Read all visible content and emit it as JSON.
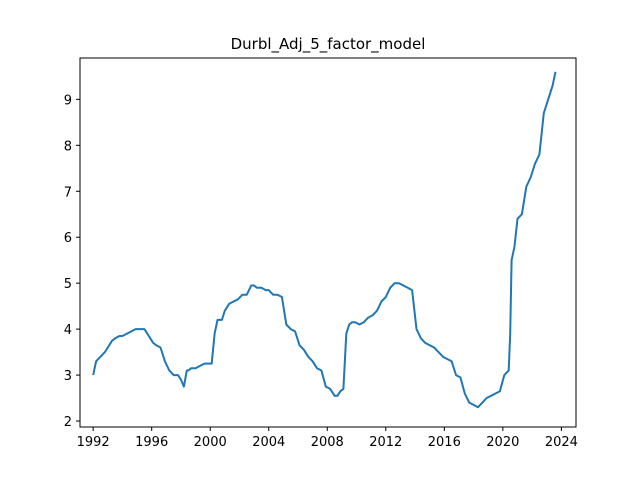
{
  "chart_data": {
    "type": "line",
    "title": "Durbl_Adj_5_factor_model",
    "xlabel": "",
    "ylabel": "",
    "xlim": [
      1991.1,
      2025.0
    ],
    "ylim": [
      1.87,
      9.9
    ],
    "xticks": [
      1992,
      1996,
      2000,
      2004,
      2008,
      2012,
      2016,
      2020,
      2024
    ],
    "yticks": [
      2,
      3,
      4,
      5,
      6,
      7,
      8,
      9
    ],
    "grid": false,
    "legend": "none",
    "series": [
      {
        "color": "#1f77b4",
        "x": [
          1992.0,
          1992.2,
          1992.5,
          1992.8,
          1993.0,
          1993.3,
          1993.5,
          1993.8,
          1994.0,
          1994.3,
          1994.6,
          1994.9,
          1995.2,
          1995.5,
          1995.8,
          1996.1,
          1996.3,
          1996.6,
          1996.9,
          1997.2,
          1997.5,
          1997.8,
          1998.0,
          1998.2,
          1998.4,
          1998.5,
          1998.7,
          1999.0,
          1999.3,
          1999.6,
          1999.9,
          2000.1,
          2000.3,
          2000.5,
          2000.8,
          2001.0,
          2001.3,
          2001.6,
          2001.9,
          2002.2,
          2002.5,
          2002.8,
          2003.0,
          2003.2,
          2003.5,
          2003.8,
          2004.0,
          2004.3,
          2004.6,
          2004.9,
          2005.2,
          2005.5,
          2005.8,
          2006.1,
          2006.4,
          2006.7,
          2007.0,
          2007.3,
          2007.6,
          2007.9,
          2008.2,
          2008.5,
          2008.7,
          2008.9,
          2009.1,
          2009.3,
          2009.5,
          2009.7,
          2009.9,
          2010.2,
          2010.5,
          2010.8,
          2011.1,
          2011.4,
          2011.7,
          2012.0,
          2012.3,
          2012.6,
          2012.9,
          2013.2,
          2013.5,
          2013.8,
          2014.1,
          2014.4,
          2014.7,
          2015.0,
          2015.3,
          2015.6,
          2015.9,
          2016.2,
          2016.5,
          2016.8,
          2017.1,
          2017.4,
          2017.7,
          2018.0,
          2018.3,
          2018.6,
          2018.9,
          2019.2,
          2019.5,
          2019.8,
          2020.1,
          2020.4,
          2020.5,
          2020.6,
          2020.8,
          2021.0,
          2021.3,
          2021.6,
          2021.9,
          2022.2,
          2022.5,
          2022.8,
          2023.1,
          2023.4,
          2023.6
        ],
        "y": [
          3.0,
          3.3,
          3.4,
          3.5,
          3.6,
          3.75,
          3.8,
          3.85,
          3.85,
          3.9,
          3.95,
          4.0,
          4.0,
          4.0,
          3.85,
          3.7,
          3.65,
          3.6,
          3.3,
          3.1,
          3.0,
          3.0,
          2.9,
          2.75,
          3.1,
          3.1,
          3.15,
          3.15,
          3.2,
          3.25,
          3.25,
          3.25,
          3.9,
          4.2,
          4.2,
          4.4,
          4.55,
          4.6,
          4.65,
          4.75,
          4.75,
          4.95,
          4.95,
          4.9,
          4.9,
          4.85,
          4.85,
          4.75,
          4.75,
          4.7,
          4.1,
          4.0,
          3.95,
          3.65,
          3.55,
          3.4,
          3.3,
          3.15,
          3.1,
          2.75,
          2.7,
          2.55,
          2.55,
          2.65,
          2.7,
          3.9,
          4.1,
          4.15,
          4.15,
          4.1,
          4.15,
          4.25,
          4.3,
          4.4,
          4.6,
          4.7,
          4.9,
          5.0,
          5.0,
          4.95,
          4.9,
          4.85,
          4.0,
          3.8,
          3.7,
          3.65,
          3.6,
          3.5,
          3.4,
          3.35,
          3.3,
          3.0,
          2.95,
          2.6,
          2.4,
          2.35,
          2.3,
          2.4,
          2.5,
          2.55,
          2.6,
          2.65,
          3.0,
          3.1,
          3.9,
          5.5,
          5.8,
          6.4,
          6.5,
          7.1,
          7.3,
          7.6,
          7.8,
          8.7,
          9.0,
          9.3,
          9.6
        ]
      }
    ]
  }
}
